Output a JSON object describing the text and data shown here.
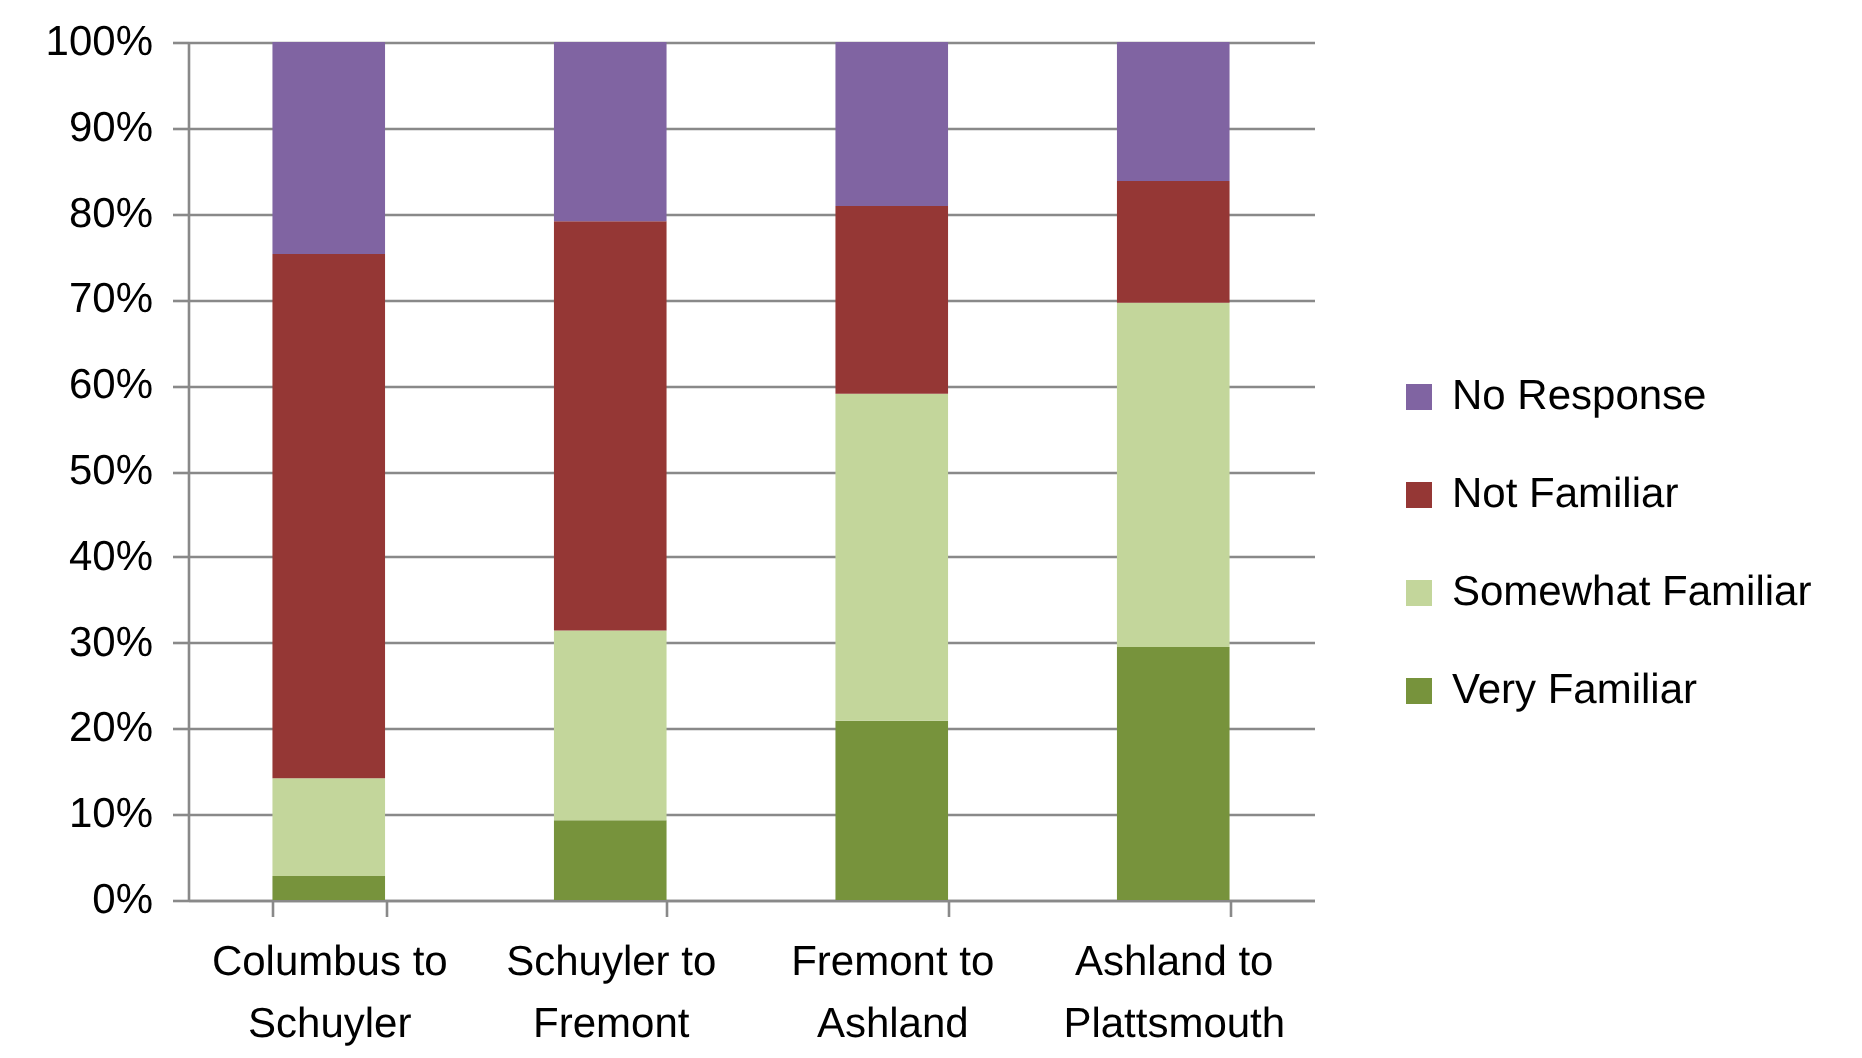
{
  "chart_data": {
    "type": "bar",
    "stacked": true,
    "categories": [
      "Columbus to Schuyler",
      "Schuyler to Fremont",
      "Fremont to Ashland",
      "Ashland to Plattsmouth"
    ],
    "series": [
      {
        "name": "Very Familiar",
        "color": "#77933c",
        "values": [
          2.8,
          9.3,
          20.9,
          29.5
        ]
      },
      {
        "name": "Somewhat Familiar",
        "color": "#c3d69b",
        "values": [
          11.4,
          22.1,
          38.1,
          40.1
        ]
      },
      {
        "name": "Not Familiar",
        "color": "#953735",
        "values": [
          61.1,
          47.7,
          21.9,
          14.2
        ]
      },
      {
        "name": "No Response",
        "color": "#8064a2",
        "values": [
          24.7,
          20.9,
          19.1,
          16.2
        ]
      }
    ],
    "ylim": [
      0,
      100
    ],
    "yticks": [
      {
        "value": 0,
        "label": "0%"
      },
      {
        "value": 10,
        "label": "10%"
      },
      {
        "value": 20,
        "label": "20%"
      },
      {
        "value": 30,
        "label": "30%"
      },
      {
        "value": 40,
        "label": "40%"
      },
      {
        "value": 50,
        "label": "50%"
      },
      {
        "value": 60,
        "label": "60%"
      },
      {
        "value": 70,
        "label": "70%"
      },
      {
        "value": 80,
        "label": "80%"
      },
      {
        "value": 90,
        "label": "90%"
      },
      {
        "value": 100,
        "label": "100%"
      }
    ],
    "grid": "y",
    "legend": "right"
  }
}
